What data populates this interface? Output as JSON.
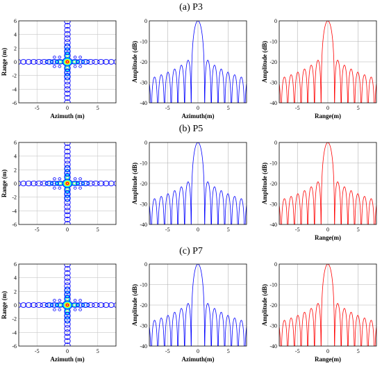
{
  "chart_data": [
    {
      "row": "(a) P3",
      "panels": [
        {
          "type": "contour",
          "xlabel": "Azimuth (m)",
          "ylabel": "Range (m)",
          "xlim": [
            -8,
            8
          ],
          "ylim": [
            -6,
            6
          ],
          "xticks": [
            "-5",
            "0",
            "5"
          ],
          "yticks": [
            "6",
            "4",
            "2",
            "0",
            "-2",
            "-4",
            "-6"
          ],
          "levels_colors": [
            "#0000ff",
            "#00a0ff",
            "#00ffff",
            "#a0ff60",
            "#ffff00",
            "#ff8000",
            "#ff0000"
          ]
        },
        {
          "type": "line",
          "xlabel": "Azimuth(m)",
          "ylabel": "Amplitude (dB)",
          "color": "#0000ff",
          "xlim": [
            -8,
            8
          ],
          "ylim": [
            -40,
            0
          ],
          "xticks": [
            "-5",
            "0",
            "5"
          ],
          "yticks": [
            "0",
            "-10",
            "-20",
            "-30",
            "-40"
          ],
          "grid": true,
          "mainlobe_width_m": 1.1,
          "peak_sidelobe_db": -13.3,
          "sidelobe_floor_db": -30
        },
        {
          "type": "line",
          "xlabel": "Range(m)",
          "ylabel": "Amplitude (dB)",
          "color": "#ff0000",
          "xlim": [
            -8,
            8
          ],
          "ylim": [
            -40,
            0
          ],
          "xticks": [
            "-5",
            "0",
            "5"
          ],
          "yticks": [
            "0",
            "-10",
            "-20",
            "-30",
            "-40"
          ],
          "grid": true,
          "mainlobe_width_m": 1.1,
          "peak_sidelobe_db": -13.3,
          "sidelobe_floor_db": -30
        }
      ]
    },
    {
      "row": "(b) P5",
      "panels": [
        {
          "type": "contour",
          "xlabel": "",
          "ylabel": "Range (m)",
          "xlim": [
            -8,
            8
          ],
          "ylim": [
            -6,
            6
          ],
          "xticks": [
            "-5",
            "0",
            "5"
          ],
          "yticks": [
            "6",
            "4",
            "2",
            "0",
            "-2",
            "-4",
            "-6"
          ],
          "levels_colors": [
            "#0000ff",
            "#00a0ff",
            "#00ffff",
            "#a0ff60",
            "#ffff00",
            "#ff8000",
            "#ff0000"
          ]
        },
        {
          "type": "line",
          "xlabel": "",
          "ylabel": "Amplitude (dB)",
          "color": "#0000ff",
          "xlim": [
            -8,
            8
          ],
          "ylim": [
            -40,
            0
          ],
          "xticks": [
            "-5",
            "0",
            "5"
          ],
          "yticks": [
            "0",
            "-10",
            "-20",
            "-30",
            "-40"
          ],
          "grid": true,
          "mainlobe_width_m": 1.1,
          "peak_sidelobe_db": -13.3,
          "sidelobe_floor_db": -30
        },
        {
          "type": "line",
          "xlabel": "Range(m)",
          "ylabel": "Amplitude (dB)",
          "color": "#ff0000",
          "xlim": [
            -8,
            8
          ],
          "ylim": [
            -40,
            0
          ],
          "xticks": [
            "-5",
            "0",
            "5"
          ],
          "yticks": [
            "0",
            "-10",
            "-20",
            "-30",
            "-40"
          ],
          "grid": true,
          "mainlobe_width_m": 1.1,
          "peak_sidelobe_db": -13.3,
          "sidelobe_floor_db": -30
        }
      ]
    },
    {
      "row": "(c) P7",
      "panels": [
        {
          "type": "contour",
          "xlabel": "Azimuth (m)",
          "ylabel": "Range (m)",
          "xlim": [
            -8,
            8
          ],
          "ylim": [
            -6,
            6
          ],
          "xticks": [
            "-5",
            "0",
            "5"
          ],
          "yticks": [
            "6",
            "4",
            "2",
            "0",
            "-2",
            "-4",
            "-6"
          ],
          "levels_colors": [
            "#0000ff",
            "#00a0ff",
            "#00ffff",
            "#a0ff60",
            "#ffff00",
            "#ff8000",
            "#ff0000"
          ]
        },
        {
          "type": "line",
          "xlabel": "Azimuth(m)",
          "ylabel": "Amplitude (dB)",
          "color": "#0000ff",
          "xlim": [
            -8,
            8
          ],
          "ylim": [
            -40,
            0
          ],
          "xticks": [
            "-5",
            "0",
            "5"
          ],
          "yticks": [
            "0",
            "-10",
            "-20",
            "-30",
            "-40"
          ],
          "grid": true,
          "mainlobe_width_m": 1.1,
          "peak_sidelobe_db": -13.3,
          "sidelobe_floor_db": -30
        },
        {
          "type": "line",
          "xlabel": "Range(m)",
          "ylabel": "Amplitude (dB)",
          "color": "#ff0000",
          "xlim": [
            -8,
            8
          ],
          "ylim": [
            -40,
            0
          ],
          "xticks": [
            "-5",
            "0",
            "5"
          ],
          "yticks": [
            "0",
            "-10",
            "-20",
            "-30",
            "-40"
          ],
          "grid": true,
          "mainlobe_width_m": 1.1,
          "peak_sidelobe_db": -13.3,
          "sidelobe_floor_db": -30
        }
      ]
    }
  ]
}
